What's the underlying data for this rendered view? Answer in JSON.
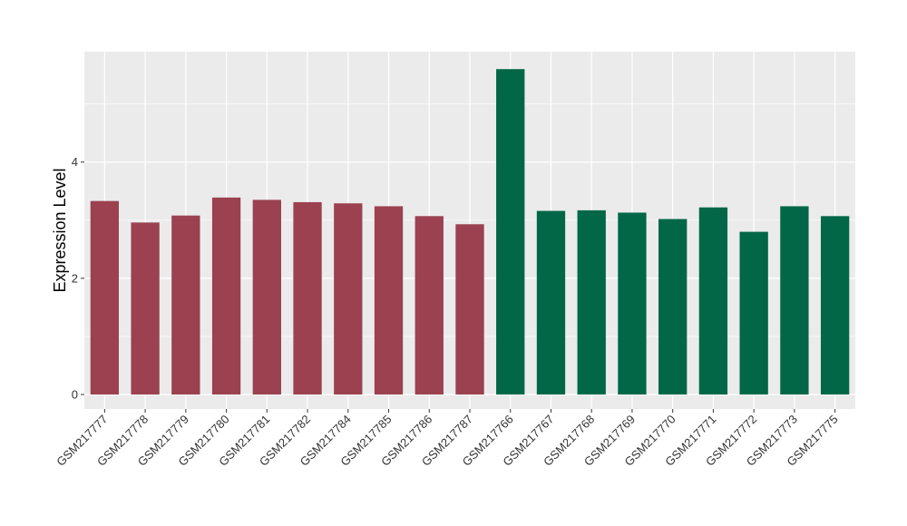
{
  "chart_data": {
    "type": "bar",
    "title": "",
    "xlabel": "",
    "ylabel": "Expression Level",
    "ylim": [
      -0.25,
      5.9
    ],
    "yticks": [
      0,
      2,
      4
    ],
    "grid": true,
    "legend": "none",
    "categories": [
      "GSM217777",
      "GSM217778",
      "GSM217779",
      "GSM217780",
      "GSM217781",
      "GSM217782",
      "GSM217784",
      "GSM217785",
      "GSM217786",
      "GSM217787",
      "GSM217766",
      "GSM217767",
      "GSM217768",
      "GSM217769",
      "GSM217770",
      "GSM217771",
      "GSM217772",
      "GSM217773",
      "GSM217775"
    ],
    "values": [
      3.33,
      2.96,
      3.08,
      3.39,
      3.35,
      3.31,
      3.29,
      3.24,
      3.07,
      2.93,
      5.6,
      3.16,
      3.17,
      3.13,
      3.02,
      3.22,
      2.8,
      3.24,
      3.07
    ],
    "groups": [
      "A",
      "A",
      "A",
      "A",
      "A",
      "A",
      "A",
      "A",
      "A",
      "A",
      "B",
      "B",
      "B",
      "B",
      "B",
      "B",
      "B",
      "B",
      "B"
    ],
    "colors": {
      "A": "#9b4150",
      "B": "#016746",
      "panel": "#ebebeb",
      "grid": "#ffffff"
    }
  }
}
